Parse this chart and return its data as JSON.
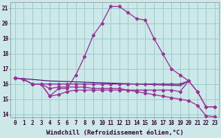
{
  "xlabel": "Windchill (Refroidissement éolien,°C)",
  "bg_color": "#cce8e8",
  "grid_color": "#99cccc",
  "line_color": "#993399",
  "line_color2": "#330066",
  "x_values": [
    0,
    1,
    2,
    3,
    4,
    5,
    6,
    7,
    8,
    9,
    10,
    11,
    12,
    13,
    14,
    15,
    16,
    17,
    18,
    19,
    20,
    21,
    22,
    23
  ],
  "curve_main": [
    16.4,
    16.3,
    null,
    16.0,
    15.2,
    15.7,
    15.7,
    16.6,
    17.8,
    19.2,
    20.0,
    21.1,
    21.1,
    20.7,
    20.3,
    20.2,
    19.0,
    18.0,
    17.0,
    16.6,
    16.2,
    15.5,
    14.5,
    14.5
  ],
  "curve_flat": [
    16.4,
    16.3,
    16.0,
    16.0,
    16.0,
    16.0,
    16.0,
    16.0,
    16.0,
    16.0,
    16.0,
    16.0,
    16.0,
    16.0,
    16.0,
    16.0,
    16.0,
    16.0,
    16.0,
    16.0,
    16.2,
    null,
    null,
    null
  ],
  "curve_decline1": [
    16.4,
    16.3,
    16.0,
    16.0,
    15.7,
    15.8,
    15.8,
    15.8,
    15.8,
    15.7,
    15.7,
    15.7,
    15.7,
    15.6,
    15.5,
    15.4,
    15.3,
    15.2,
    15.1,
    15.0,
    14.9,
    14.6,
    13.9,
    13.85
  ],
  "curve_decline2": [
    16.4,
    16.3,
    16.0,
    16.0,
    15.2,
    15.3,
    15.5,
    15.6,
    15.6,
    15.6,
    15.6,
    15.6,
    15.6,
    15.6,
    15.6,
    15.6,
    15.6,
    15.6,
    15.6,
    15.5,
    16.2,
    15.5,
    14.5,
    14.5
  ],
  "curve_straight": [
    16.4,
    16.35,
    16.3,
    16.25,
    16.2,
    16.18,
    16.16,
    16.14,
    16.12,
    16.1,
    16.08,
    16.06,
    16.04,
    16.02,
    16.0,
    15.98,
    15.96,
    15.94,
    15.92,
    15.9,
    16.2,
    null,
    null,
    null
  ],
  "ylim": [
    13.8,
    21.4
  ],
  "xlim": [
    -0.5,
    23.5
  ],
  "yticks": [
    14,
    15,
    16,
    17,
    18,
    19,
    20,
    21
  ],
  "xtick_labels": [
    "0",
    "1",
    "2",
    "3",
    "4",
    "5",
    "6",
    "7",
    "8",
    "9",
    "10",
    "11",
    "12",
    "13",
    "14",
    "15",
    "16",
    "17",
    "18",
    "19",
    "20",
    "21",
    "22",
    "23"
  ],
  "tick_fontsize": 5.5,
  "label_fontsize": 6.5
}
